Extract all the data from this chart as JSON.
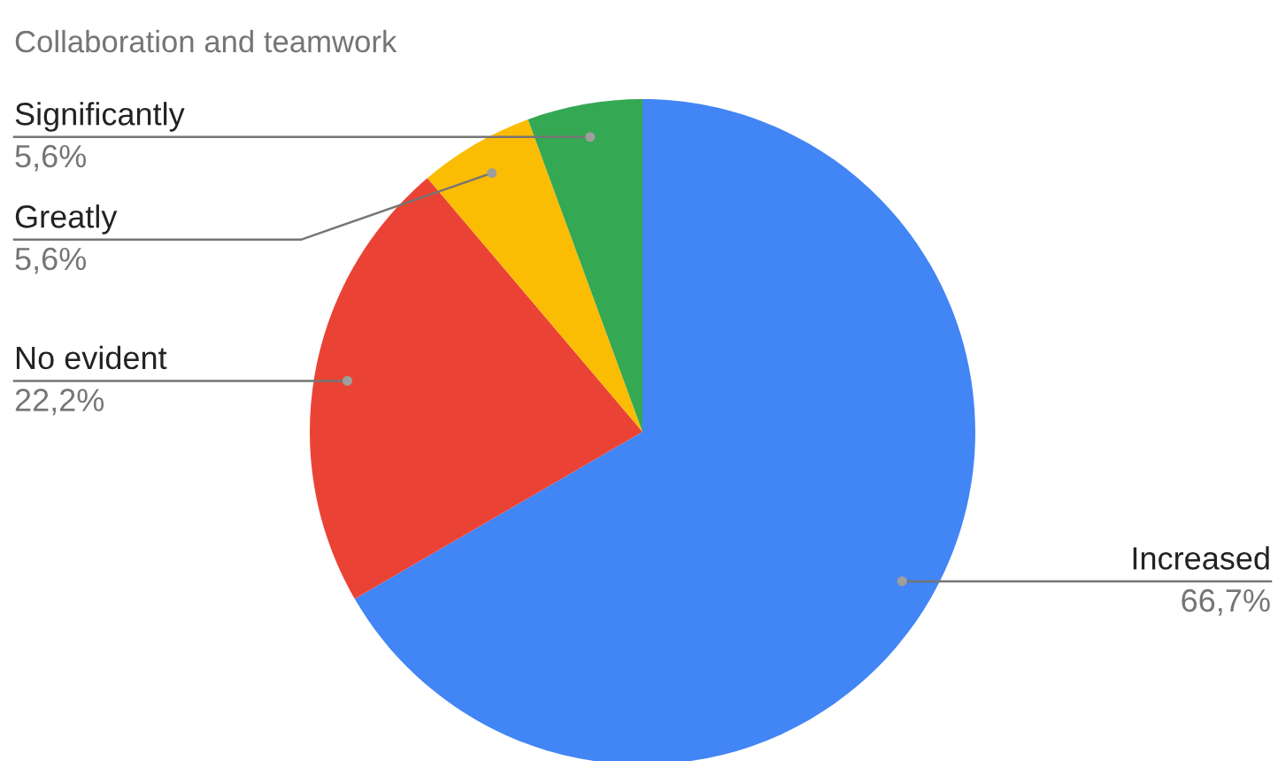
{
  "chart_data": {
    "type": "pie",
    "title": "Collaboration and teamwork",
    "categories": [
      "Increased",
      "No evident",
      "Greatly",
      "Significantly"
    ],
    "values": [
      66.7,
      22.2,
      5.6,
      5.6
    ],
    "colors": [
      "#4285f4",
      "#ea4335",
      "#fbbc04",
      "#34a853"
    ],
    "value_labels": [
      "66,7%",
      "22,2%",
      "5,6%",
      "5,6%"
    ]
  }
}
